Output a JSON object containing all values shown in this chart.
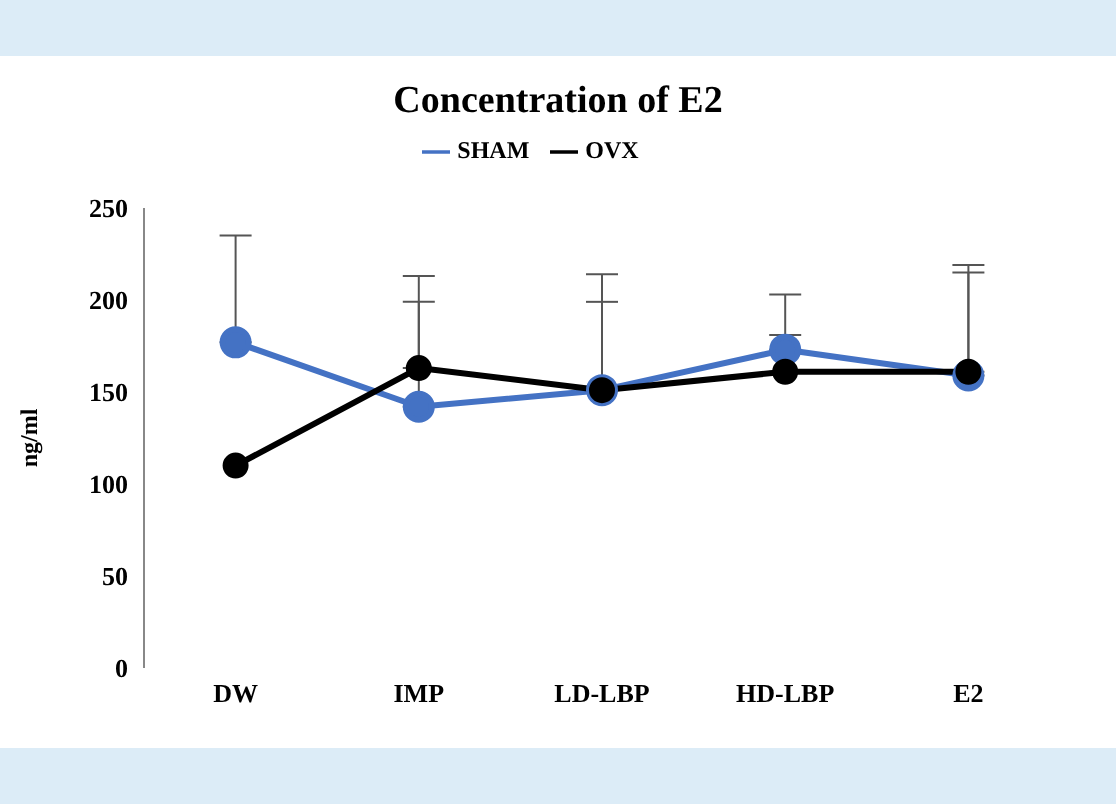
{
  "chart_data": {
    "type": "line",
    "title": "Concentration of E2",
    "ylabel": "ng/ml",
    "categories": [
      "DW",
      "IMP",
      "LD-LBP",
      "HD-LBP",
      "E2"
    ],
    "series": [
      {
        "name": "SHAM",
        "color": "#4472c4",
        "values": [
          177,
          142,
          151,
          173,
          159
        ],
        "errors": [
          [
            177,
            235
          ],
          [
            142,
            199
          ],
          [
            151,
            199
          ],
          [
            173,
            203
          ],
          [
            159,
            219
          ]
        ]
      },
      {
        "name": "OVX",
        "color": "#000000",
        "values": [
          110,
          163,
          151,
          161,
          161
        ],
        "errors": [
          null,
          [
            163,
            213
          ],
          [
            151,
            214
          ],
          [
            161,
            181
          ],
          [
            161,
            215
          ]
        ]
      }
    ],
    "ylim": [
      0,
      250
    ],
    "yticks": [
      0,
      50,
      100,
      150,
      200,
      250
    ],
    "grid": false,
    "legend": "top",
    "marker": "circle",
    "line_style": "solid"
  }
}
